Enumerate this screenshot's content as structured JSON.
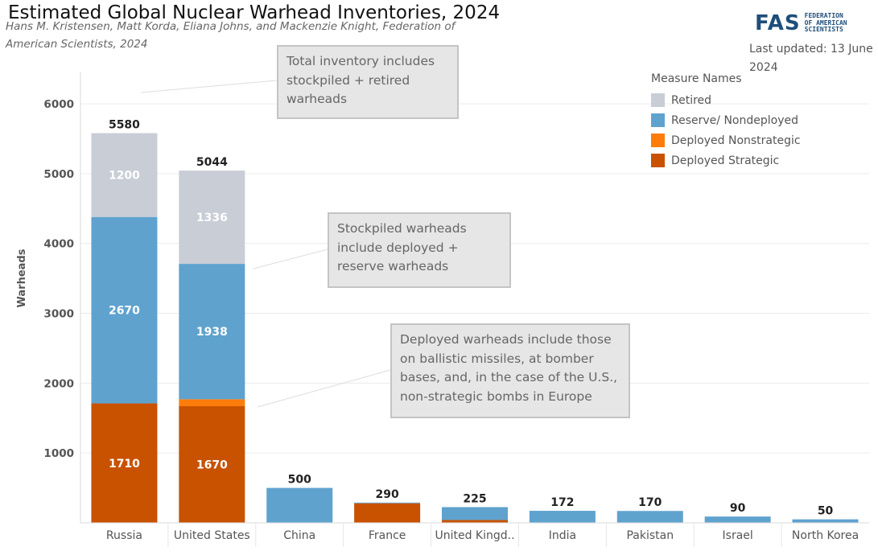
{
  "header": {
    "title": "Estimated Global Nuclear Warhead Inventories, 2024",
    "subtitle": "Hans M. Kristensen, Matt Korda, Eliana Johns, and Mackenzie Knight, Federation of American Scientists, 2024",
    "updated": "Last updated: 13 June 2024",
    "logo": {
      "mark": "FAS",
      "lines": [
        "FEDERATION",
        "OF AMERICAN",
        "SCIENTISTS"
      ]
    }
  },
  "legend": {
    "title": "Measure Names",
    "items": [
      {
        "label": "Retired",
        "color": "#c8cdd6"
      },
      {
        "label": "Reserve/ Nondeployed",
        "color": "#5fa2ce"
      },
      {
        "label": "Deployed Nonstrategic",
        "color": "#fc7d0b"
      },
      {
        "label": "Deployed Strategic",
        "color": "#c85200"
      }
    ]
  },
  "annotations": [
    {
      "text": "Total inventory includes stockpiled + retired warheads"
    },
    {
      "text": "Stockpiled warheads include deployed + reserve warheads"
    },
    {
      "text": "Deployed warheads include those on ballistic missiles, at bomber bases, and, in the case of the U.S., non-strategic bombs in Europe"
    }
  ],
  "chart_data": {
    "type": "bar",
    "stacked": true,
    "categories": [
      "Russia",
      "United States",
      "China",
      "France",
      "United Kingd..",
      "India",
      "Pakistan",
      "Israel",
      "North Korea"
    ],
    "series": [
      {
        "name": "Deployed Strategic",
        "color": "#c85200",
        "values": [
          1710,
          1670,
          0,
          280,
          40,
          0,
          0,
          0,
          0
        ]
      },
      {
        "name": "Deployed Nonstrategic",
        "color": "#fc7d0b",
        "values": [
          0,
          100,
          0,
          0,
          0,
          0,
          0,
          0,
          0
        ]
      },
      {
        "name": "Reserve/ Nondeployed",
        "color": "#5fa2ce",
        "values": [
          2670,
          1938,
          500,
          10,
          185,
          172,
          170,
          90,
          50
        ]
      },
      {
        "name": "Retired",
        "color": "#c8cdd6",
        "values": [
          1200,
          1336,
          0,
          0,
          0,
          0,
          0,
          0,
          0
        ]
      }
    ],
    "segment_labels": {
      "Deployed Strategic": [
        "1710",
        "1670",
        "",
        "",
        "",
        "",
        "",
        "",
        ""
      ],
      "Reserve/ Nondeployed": [
        "2670",
        "1938",
        "",
        "",
        "",
        "",
        "",
        "",
        ""
      ],
      "Retired": [
        "1200",
        "1336",
        "",
        "",
        "",
        "",
        "",
        "",
        ""
      ]
    },
    "totals": [
      5580,
      5044,
      500,
      290,
      225,
      172,
      170,
      90,
      50
    ],
    "ylabel": "Warheads",
    "xlabel": "",
    "ylim": [
      0,
      6450
    ],
    "yticks": [
      1000,
      2000,
      3000,
      4000,
      5000,
      6000
    ],
    "grid": true,
    "legend_position": "top-right"
  }
}
